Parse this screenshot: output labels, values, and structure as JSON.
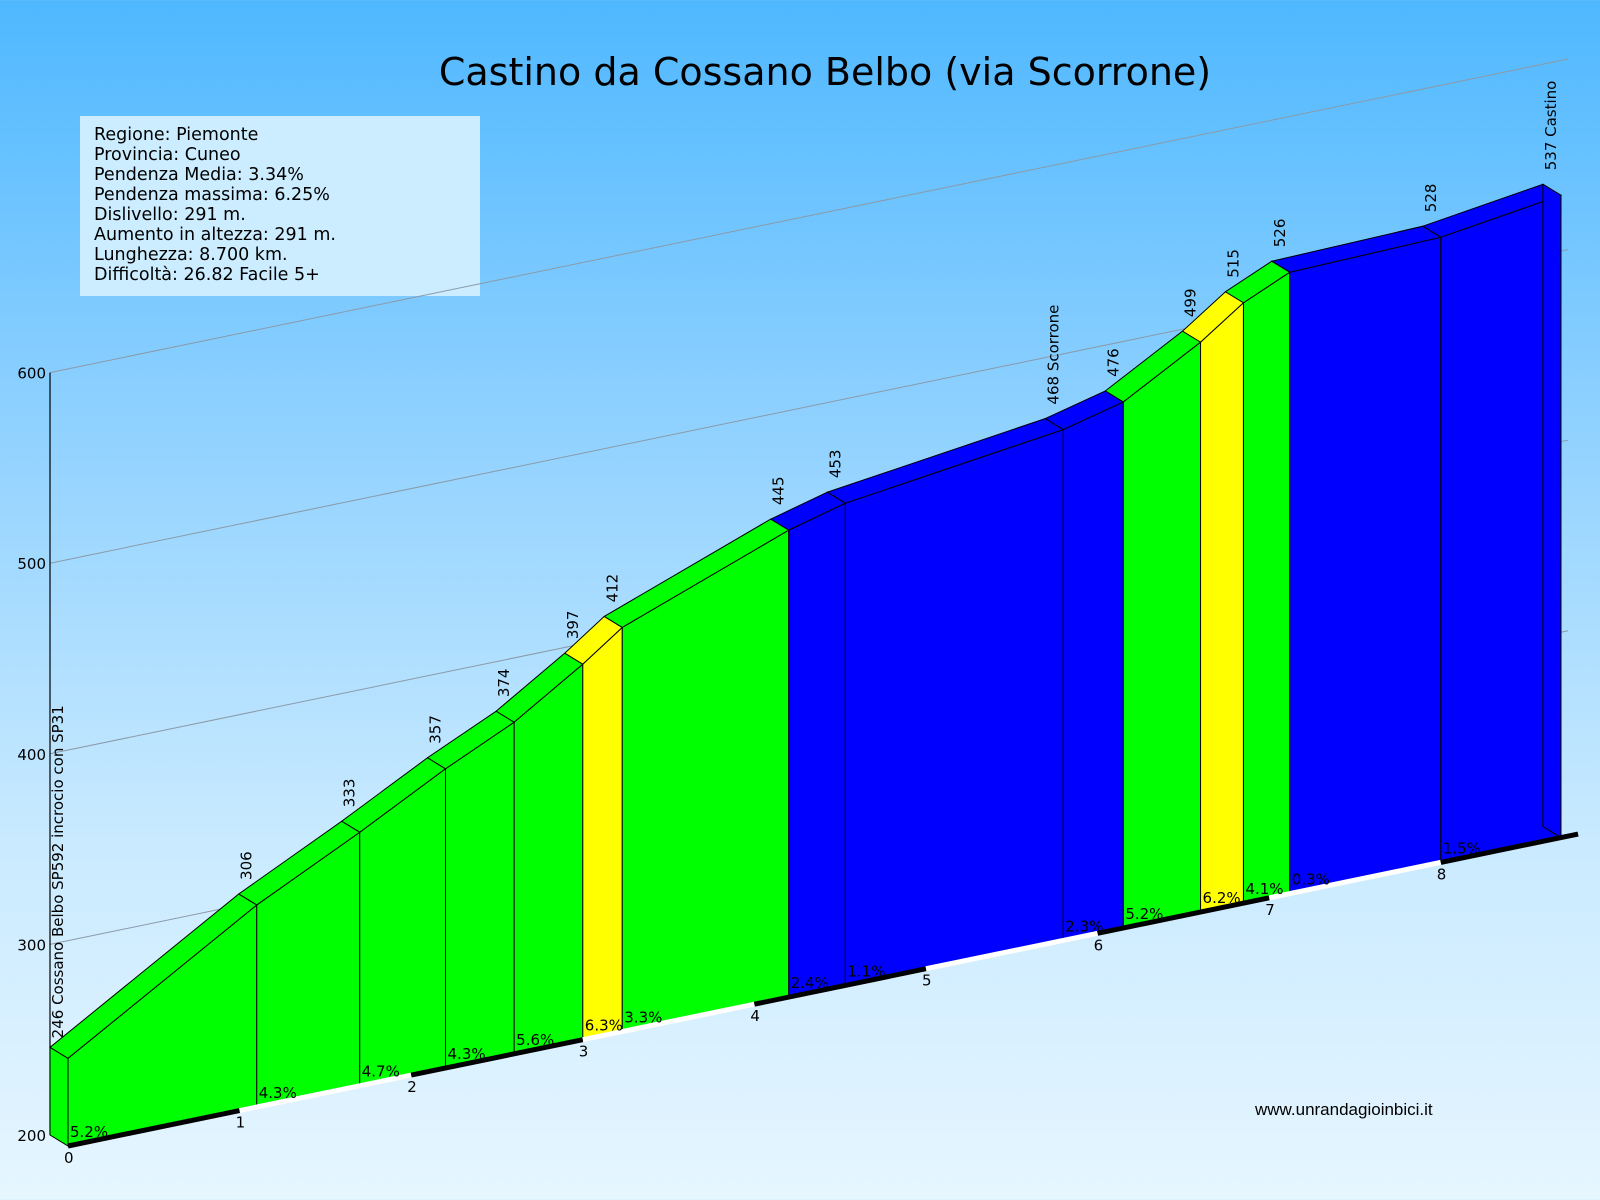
{
  "title": "Castino da Cossano Belbo (via Scorrone)",
  "info": [
    "Regione: Piemonte",
    "Provincia: Cuneo",
    "Pendenza Media: 3.34%",
    "Pendenza massima: 6.25%",
    "Dislivello: 291 m.",
    "Aumento in altezza:  291 m.",
    "Lunghezza:  8.700 km.",
    "Difficoltà: 26.82 Facile 5+"
  ],
  "website": "www.unrandagioinbici.it",
  "colors": {
    "green": "#00ff00",
    "yellow": "#ffff00",
    "blue": "#0000ff"
  },
  "chart_data": {
    "type": "area",
    "title": "Castino da Cossano Belbo (via Scorrone)",
    "xlabel": "",
    "ylabel": "",
    "x_ticks": [
      0,
      1,
      2,
      3,
      4,
      5,
      6,
      7,
      8
    ],
    "y_ticks": [
      200,
      300,
      400,
      500,
      600
    ],
    "xlim": [
      0,
      8.7
    ],
    "ylim": [
      200,
      600
    ],
    "points": [
      {
        "km": 0.0,
        "alt": 246,
        "label": "246 Cossano Belbo SP592 incrocio con SP31"
      },
      {
        "km": 1.1,
        "alt": 306,
        "label": "306"
      },
      {
        "km": 1.7,
        "alt": 333,
        "label": "333"
      },
      {
        "km": 2.2,
        "alt": 357,
        "label": "357"
      },
      {
        "km": 2.6,
        "alt": 374,
        "label": "374"
      },
      {
        "km": 3.0,
        "alt": 397,
        "label": "397"
      },
      {
        "km": 3.23,
        "alt": 412,
        "label": "412"
      },
      {
        "km": 4.2,
        "alt": 445,
        "label": "445"
      },
      {
        "km": 4.53,
        "alt": 453,
        "label": "453"
      },
      {
        "km": 5.8,
        "alt": 468,
        "label": "468 Scorrone"
      },
      {
        "km": 6.15,
        "alt": 476,
        "label": "476"
      },
      {
        "km": 6.6,
        "alt": 499,
        "label": "499"
      },
      {
        "km": 6.85,
        "alt": 515,
        "label": "515"
      },
      {
        "km": 7.12,
        "alt": 526,
        "label": "526"
      },
      {
        "km": 8.0,
        "alt": 528,
        "label": "528"
      },
      {
        "km": 8.7,
        "alt": 537,
        "label": "537 Castino"
      }
    ],
    "segments": [
      {
        "grade": "5.2%",
        "color": "green"
      },
      {
        "grade": "4.3%",
        "color": "green"
      },
      {
        "grade": "4.7%",
        "color": "green"
      },
      {
        "grade": "4.3%",
        "color": "green"
      },
      {
        "grade": "5.6%",
        "color": "green"
      },
      {
        "grade": "6.3%",
        "color": "yellow"
      },
      {
        "grade": "3.3%",
        "color": "green"
      },
      {
        "grade": "2.4%",
        "color": "blue"
      },
      {
        "grade": "1.1%",
        "color": "blue"
      },
      {
        "grade": "2.3%",
        "color": "blue"
      },
      {
        "grade": "5.2%",
        "color": "green"
      },
      {
        "grade": "6.2%",
        "color": "yellow"
      },
      {
        "grade": "4.1%",
        "color": "green"
      },
      {
        "grade": "0.3%",
        "color": "blue"
      },
      {
        "grade": "1.5%",
        "color": "blue"
      }
    ]
  }
}
